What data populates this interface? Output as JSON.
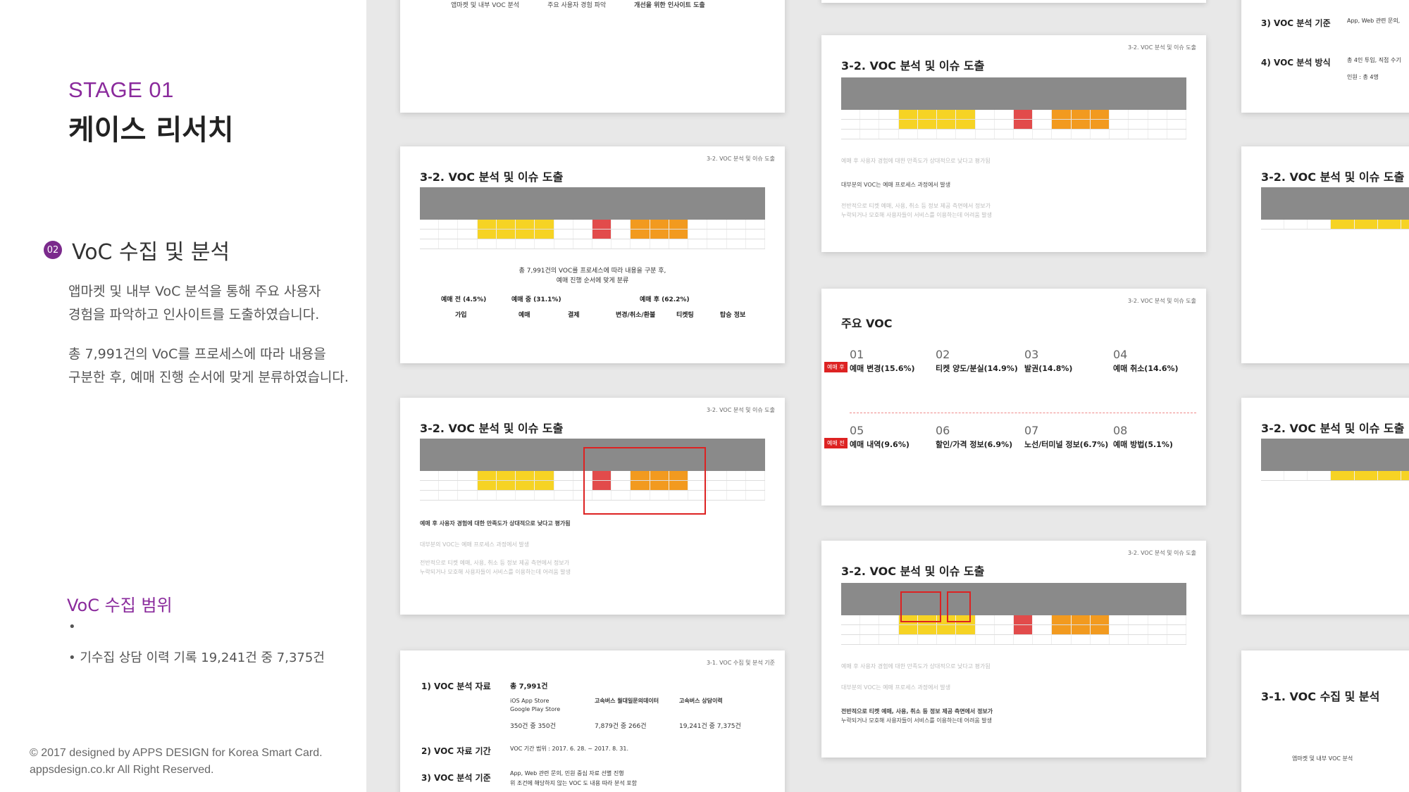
{
  "left": {
    "stage": "STAGE 01",
    "title": "케이스 리서치",
    "section_num": "02",
    "section_title": "VoC 수집 및 분석",
    "para1_l1": "앱마켓 및 내부 VoC 분석을 통해 주요 사용자",
    "para1_l2": "경험을 파악하고  인사이트를 도출하였습니다.",
    "para2_l1": "총 7,991건의 VoC를 프로세스에 따라 내용을",
    "para2_l2": "구분한 후, 예매 진행 순서에 맞게  분류하였습니다.",
    "range_title": "VoC 수집 범위",
    "bullet_empty": "•",
    "bullet_1": "•  기수집 상담 이력 기록 19,241건 중 7,375건",
    "footer_l1": "© 2017 designed by  APPS DESIGN for Korea Smart Card.",
    "footer_l2": "appsdesign.co.kr  All Right Reserved."
  },
  "slides": {
    "tag_32": "3-2. VOC 분석 및 이슈 도출",
    "tag_31": "3-1. VOC 수집 및 분석 기준",
    "title_32": "3-2. VOC 분석 및 이슈 도출",
    "title_31": "3-1. VOC 수집 및 분석",
    "flow_1": "앱마켓 및 내부 VOC 분석",
    "flow_2": "주요 사용자 경험 파악",
    "flow_3": "개선을 위한 인사이트 도출",
    "summary_l1": "총 7,991건의 VOC를 프로세스에 따라 내용을 구분 후,",
    "summary_l2": "예매 진행 순서에 맞게 분류",
    "phase_pre": "예매 전 (4.5%)",
    "phase_mid": "예매 중 (31.1%)",
    "phase_post": "예매 후 (62.2%)",
    "cat_join": "가입",
    "cat_book": "예매",
    "cat_pay": "결제",
    "cat_change": "변경/취소/환불",
    "cat_ticket": "티켓팅",
    "cat_board": "탑승 정보",
    "insight_bold": "예매 후 사용자 경험에 대한 만족도가 상대적으로 낮다고 평가됨",
    "insight_2": "대부분의 VOC는 예매 프로세스 과정에서 발생",
    "insight_3": "전반적으로 티켓 예매, 사용, 취소 등 정보 제공 측면에서 정보가",
    "insight_3b": "누락되거나 모호해 사용자들이 서비스를 이용하는데 어려움 발생",
    "major_title": "주요 VOC",
    "major_tag_post": "예매 후",
    "major_tag_pre": "예매 전",
    "major": [
      {
        "num": "01",
        "label": "예매 변경(15.6%)"
      },
      {
        "num": "02",
        "label": "티켓 양도/분실(14.9%)"
      },
      {
        "num": "03",
        "label": "발권(14.8%)"
      },
      {
        "num": "04",
        "label": "예매 취소(14.6%)"
      },
      {
        "num": "05",
        "label": "예매 내역(9.6%)"
      },
      {
        "num": "06",
        "label": "할인/가격 정보(6.9%)"
      },
      {
        "num": "07",
        "label": "노선/터미널 정보(6.7%)"
      },
      {
        "num": "08",
        "label": "예매 방법(5.1%)"
      }
    ],
    "voc_1": "1) VOC 분석 자료",
    "voc_2": "2) VOC 자료 기간",
    "voc_3": "3) VOC 분석 기준",
    "voc_4": "4) VOC 분석 방식",
    "voc_total": "총 7,991건",
    "voc_store": "iOS App Store",
    "voc_store2": "Google Play Store",
    "voc_bus": "고속버스 월대일문의데이터",
    "voc_bus2": "고속버스 상담이력",
    "voc_350": "350건 중 350건",
    "voc_266": "7,879건 중 266건",
    "voc_7375": "19,241건 중 7,375건",
    "voc_period": "VOC 기간 범위 : 2017. 6. 28. ~ 2017. 8. 31.",
    "voc_criteria": "App, Web 관련 문의, 민원 중심 자료 선별 진행",
    "voc_criteria2": "위 조건에 해당하지 않는 VOC 도 내용 따라 분석 포함",
    "right_criteria": "App, Web 관련 문의,",
    "right_method": "총 4인 투입, 직접 수기",
    "right_people": "인원 : 총 4명"
  }
}
